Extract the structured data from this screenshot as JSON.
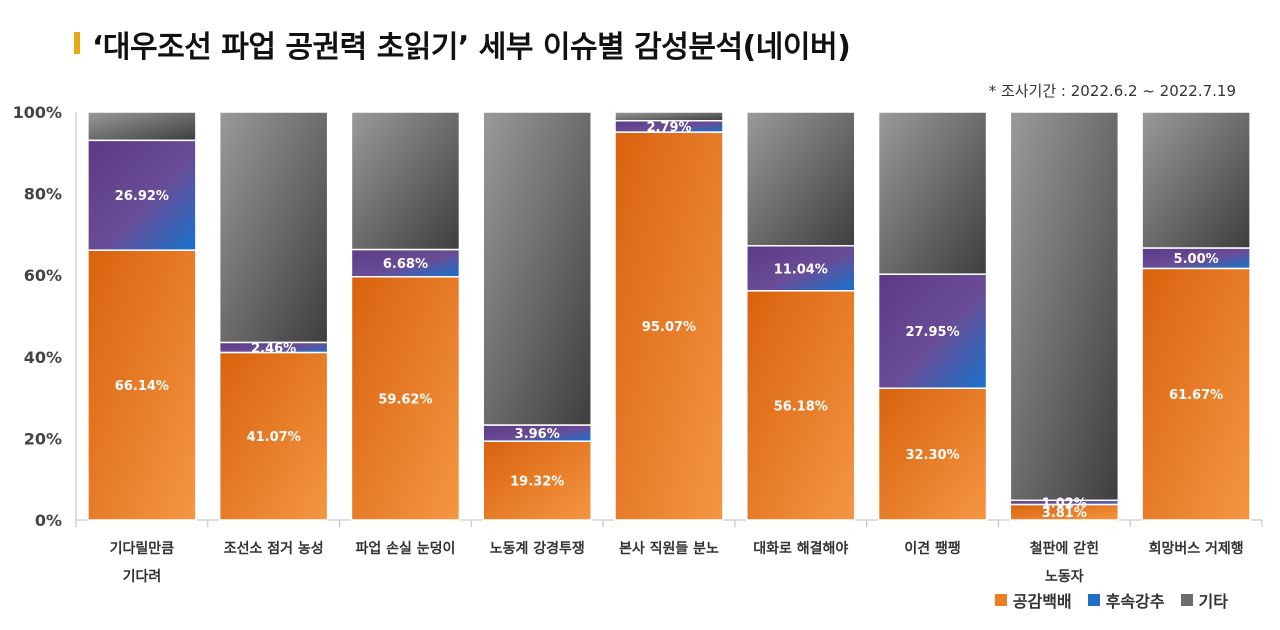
{
  "title": "‘대우조선 파업 공권력 초읽기’ 세부 이슈별 감성분석(네이버)",
  "note": "* 조사기간 : 2022.6.2 ~ 2022.7.19",
  "chart_data": {
    "type": "bar",
    "stacked": true,
    "percent": true,
    "ylim": [
      0,
      100
    ],
    "yticks": [
      "0%",
      "20%",
      "40%",
      "60%",
      "80%",
      "100%"
    ],
    "ytick_values": [
      0,
      20,
      40,
      60,
      80,
      100
    ],
    "categories": [
      [
        "기다릴만큼",
        "기다려"
      ],
      [
        "조선소 점거 농성"
      ],
      [
        "파업 손실 눈덩이"
      ],
      [
        "노동계 강경투쟁"
      ],
      [
        "본사 직원들 분노"
      ],
      [
        "대화로 해결해야"
      ],
      [
        "이견 팽팽"
      ],
      [
        "철판에 갇힌",
        "노동자"
      ],
      [
        "희망버스 거제행"
      ]
    ],
    "series": [
      {
        "name": "공감백배",
        "color": "#ef7d22",
        "values": [
          66.14,
          41.07,
          59.62,
          19.32,
          95.07,
          56.18,
          32.3,
          3.81,
          61.67
        ],
        "labels": [
          "66.14%",
          "41.07%",
          "59.62%",
          "19.32%",
          "95.07%",
          "56.18%",
          "32.30%",
          "3.81%",
          "61.67%"
        ]
      },
      {
        "name": "후속강추",
        "color": "#1f6fc5",
        "values": [
          26.92,
          2.46,
          6.68,
          3.96,
          2.79,
          11.04,
          27.95,
          1.02,
          5.0
        ],
        "labels": [
          "26.92%",
          "2.46%",
          "6.68%",
          "3.96%",
          "2.79%",
          "11.04%",
          "27.95%",
          "1.02%",
          "5.00%"
        ]
      },
      {
        "name": "기타",
        "color": "#6e6e6e",
        "values": [
          6.94,
          56.47,
          33.7,
          76.72,
          2.14,
          32.78,
          39.75,
          95.17,
          33.33
        ]
      }
    ],
    "legend_position": "bottom-right"
  }
}
